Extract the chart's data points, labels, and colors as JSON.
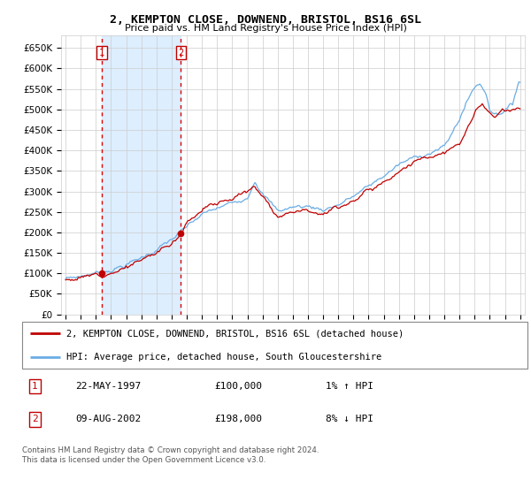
{
  "title": "2, KEMPTON CLOSE, DOWNEND, BRISTOL, BS16 6SL",
  "subtitle": "Price paid vs. HM Land Registry's House Price Index (HPI)",
  "legend_line1": "2, KEMPTON CLOSE, DOWNEND, BRISTOL, BS16 6SL (detached house)",
  "legend_line2": "HPI: Average price, detached house, South Gloucestershire",
  "transaction1_date": "22-MAY-1997",
  "transaction1_price": "£100,000",
  "transaction1_hpi": "1% ↑ HPI",
  "transaction2_date": "09-AUG-2002",
  "transaction2_price": "£198,000",
  "transaction2_hpi": "8% ↓ HPI",
  "footer": "Contains HM Land Registry data © Crown copyright and database right 2024.\nThis data is licensed under the Open Government Licence v3.0.",
  "hpi_color": "#6aade4",
  "price_color": "#c00000",
  "vline_color": "#dd0000",
  "shade_color": "#ddeeff",
  "background_color": "#ffffff",
  "grid_color": "#cccccc",
  "transaction1_x": 1997.38,
  "transaction1_y": 100000,
  "transaction2_x": 2002.6,
  "transaction2_y": 198000,
  "xlim_left": 1994.7,
  "xlim_right": 2025.3,
  "ylim": [
    0,
    680000
  ],
  "yticks": [
    0,
    50000,
    100000,
    150000,
    200000,
    250000,
    300000,
    350000,
    400000,
    450000,
    500000,
    550000,
    600000,
    650000
  ]
}
